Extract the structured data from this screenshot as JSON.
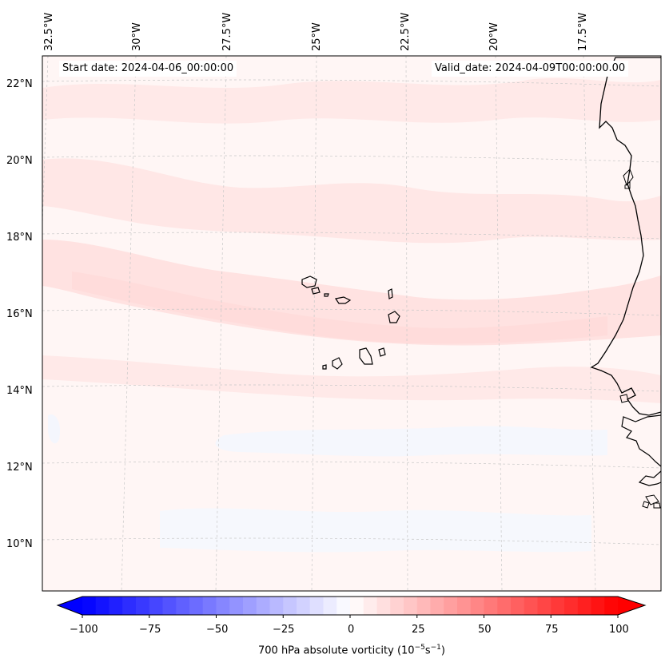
{
  "start_date": "Start date: 2024-04-06_00:00:00",
  "valid_date": "Valid_date: 2024-04-09T00:00:00.00",
  "lon_labels": [
    "32.5°W",
    "30°W",
    "27.5°W",
    "25°W",
    "22.5°W",
    "20°W",
    "17.5°W"
  ],
  "lat_labels": [
    "22°N",
    "20°N",
    "18°N",
    "16°N",
    "14°N",
    "12°N",
    "10°N"
  ],
  "colorbar": {
    "title": "700 hPa absolute vorticity (10",
    "title_sup1": "−5",
    "title_mid": "s",
    "title_sup2": "−1",
    "title_end": ")",
    "ticks": [
      "−100",
      "−75",
      "−50",
      "−25",
      "0",
      "25",
      "50",
      "75",
      "100"
    ],
    "range": [
      -100,
      100
    ],
    "levels": 40,
    "colors": {
      "negative": "#0000ff",
      "zero": "#ffffff",
      "positive": "#ff0000"
    }
  },
  "colors": {
    "background_field": "#fff6f5",
    "weak_positive": "#ffe6e5",
    "moderate_positive": "#ffdede",
    "weak_negative": "#f5f7fd",
    "coastline": "#000000",
    "gridline": "#c8c8c8"
  }
}
